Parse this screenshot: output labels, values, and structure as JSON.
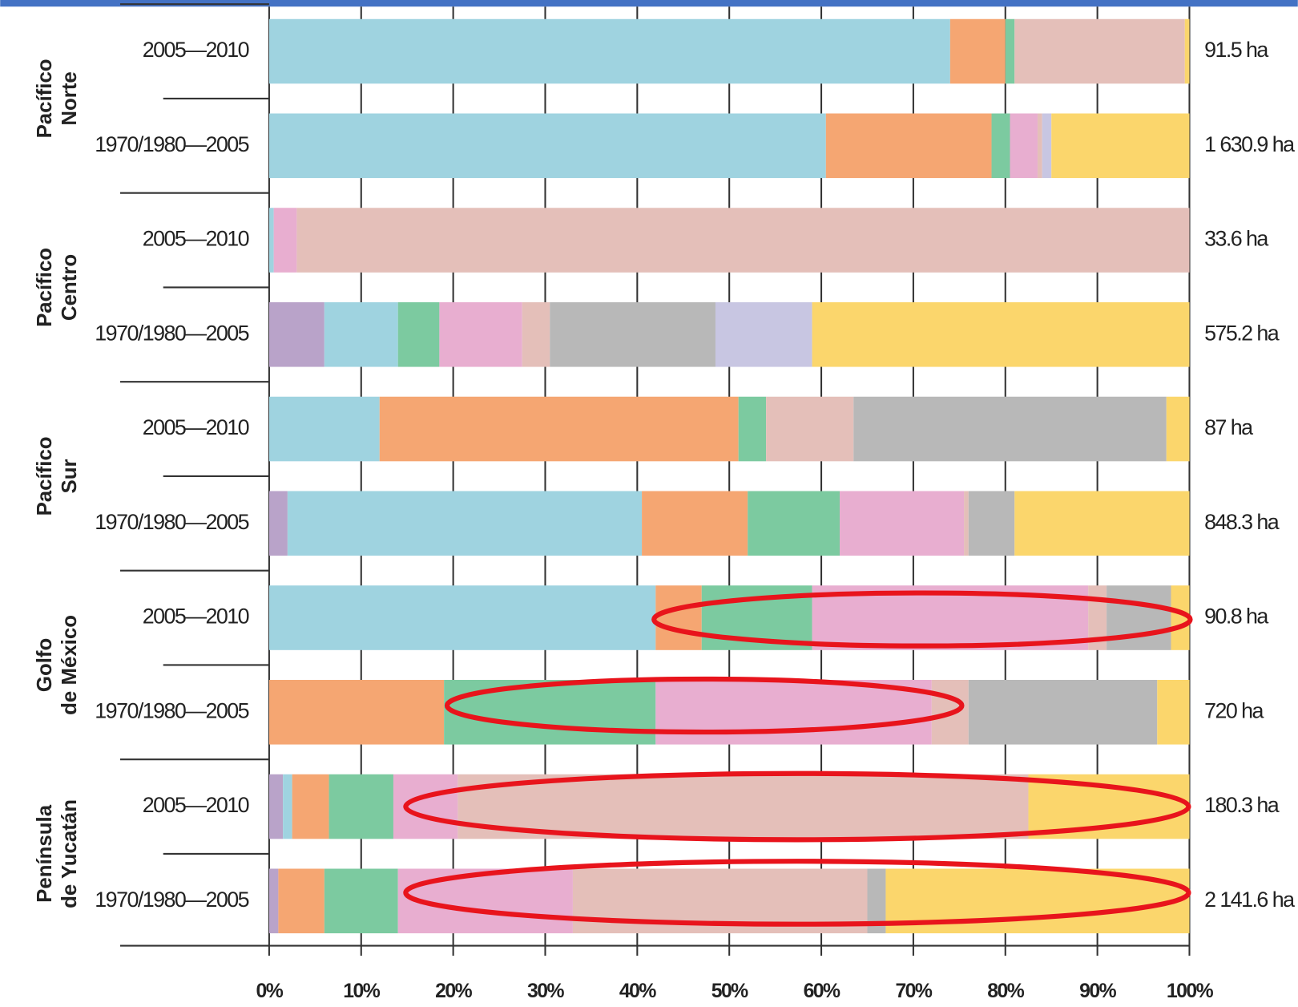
{
  "chart_data": {
    "type": "stacked_bar_horizontal",
    "groups": [
      [
        "Pacífico",
        "Norte"
      ],
      [
        "Pacífico",
        "Centro"
      ],
      [
        "Pacífico",
        "Sur"
      ],
      [
        "Golfo",
        "de México"
      ],
      [
        "Península",
        "de Yucatán"
      ]
    ],
    "categories": [
      "2005—2010",
      "1970/1980—2005",
      "2005—2010",
      "1970/1980—2005",
      "2005—2010",
      "1970/1980—2005",
      "2005—2010",
      "1970/1980—2005",
      "2005—2010",
      "1970/1980—2005"
    ],
    "bar_labels": [
      "91.5 ha",
      "1 630.9 ha",
      "33.6 ha",
      "575.2 ha",
      "87 ha",
      "848.3 ha",
      "90.8 ha",
      "720 ha",
      "180.3 ha",
      "2 141.6 ha"
    ],
    "series": [
      {
        "color": "#b9a3c9",
        "values": [
          0,
          0,
          0,
          6,
          0,
          2,
          0,
          0,
          1.5,
          1
        ]
      },
      {
        "color": "#9fd3e0",
        "values": [
          74,
          60.5,
          0.5,
          8,
          12,
          38.5,
          42,
          0,
          1,
          0
        ]
      },
      {
        "color": "#f5a672",
        "values": [
          6,
          18,
          0,
          0,
          39,
          11.5,
          5,
          19,
          4,
          5
        ]
      },
      {
        "color": "#7ccaa0",
        "values": [
          1,
          2,
          0,
          4.5,
          3,
          10,
          12,
          23,
          7,
          8
        ]
      },
      {
        "color": "#e8aed0",
        "values": [
          0,
          3,
          2.5,
          9,
          0,
          13.5,
          30,
          30,
          7,
          19
        ]
      },
      {
        "color": "#e4bfb9",
        "values": [
          18.5,
          0.5,
          97,
          3,
          9.5,
          0.5,
          2,
          4,
          62,
          32
        ]
      },
      {
        "color": "#b8b8b8",
        "values": [
          0,
          0,
          0,
          18,
          34,
          5,
          7,
          20.5,
          0,
          2
        ]
      },
      {
        "color": "#c8c6e2",
        "values": [
          0,
          1,
          0,
          10.5,
          0,
          0,
          0,
          0,
          0,
          0
        ]
      },
      {
        "color": "#fbd66c",
        "values": [
          0.5,
          15,
          0,
          41,
          2.5,
          19,
          2,
          3.5,
          17.5,
          33
        ]
      }
    ],
    "xlim": [
      0,
      100
    ],
    "xticks": [
      {
        "value": 0,
        "label": "0%"
      },
      {
        "value": 10,
        "label": "10%"
      },
      {
        "value": 20,
        "label": "20%"
      },
      {
        "value": 30,
        "label": "30%"
      },
      {
        "value": 40,
        "label": "40%"
      },
      {
        "value": 50,
        "label": "50%"
      },
      {
        "value": 60,
        "label": "60%"
      },
      {
        "value": 70,
        "label": "70%"
      },
      {
        "value": 80,
        "label": "80%"
      },
      {
        "value": 90,
        "label": "90%"
      },
      {
        "value": 100,
        "label": "100%"
      }
    ],
    "grid": true
  }
}
